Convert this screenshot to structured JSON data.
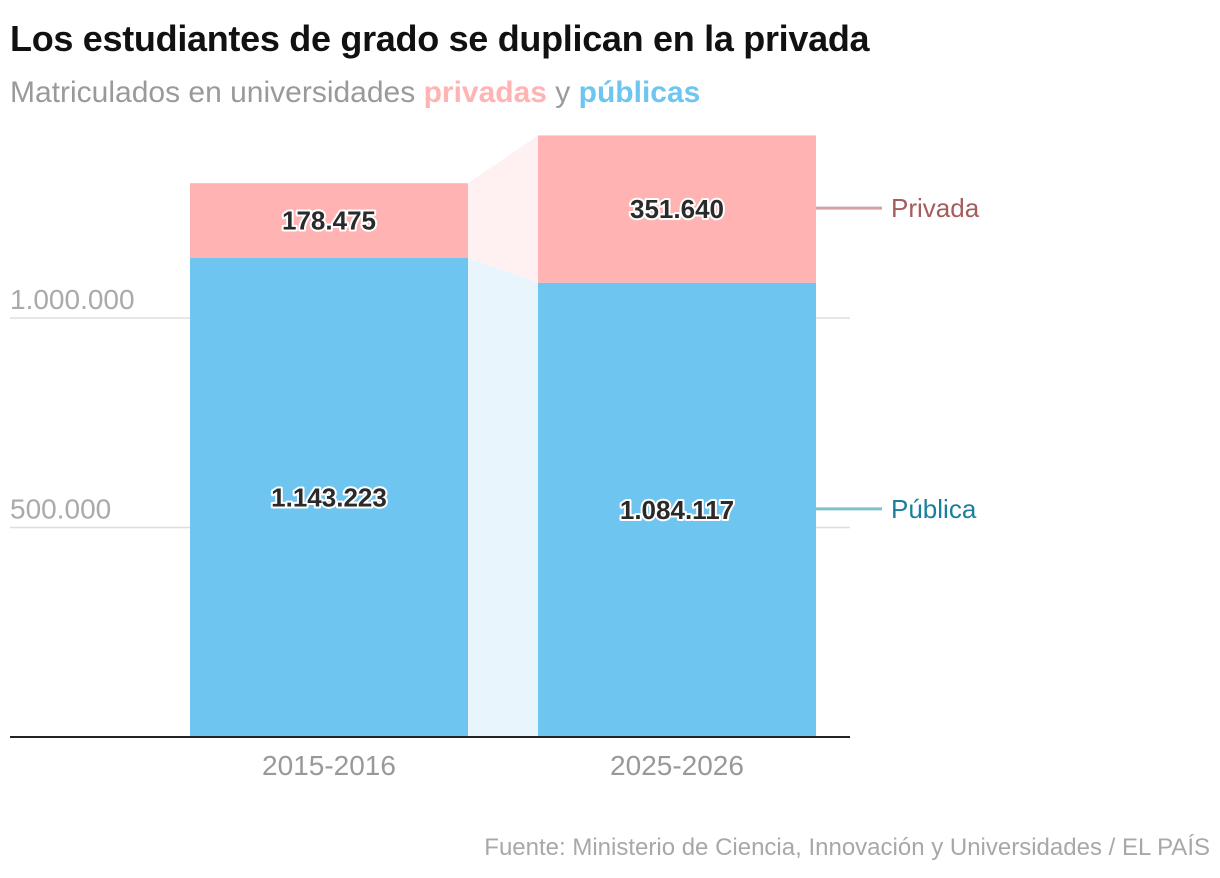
{
  "header": {
    "title": "Los estudiantes de grado se duplican en la privada",
    "subtitle_prefix": "Matriculados en universidades ",
    "subtitle_private": "privadas",
    "subtitle_join": " y ",
    "subtitle_public": "públicas"
  },
  "footer": {
    "source": "Fuente: Ministerio de Ciencia, Innovación y Universidades / EL PAÍS"
  },
  "colors": {
    "privada": "#ffb3b3",
    "publica": "#6ec6f0",
    "privada_band": "#fff1f1",
    "publica_band": "#e8f5fc",
    "privada_legend_text": "#a65c5c",
    "publica_legend_text": "#1a7f9f",
    "privada_legend_line": "#d9a0a4",
    "publica_legend_line": "#7cc1cc"
  },
  "chart_data": {
    "type": "bar",
    "stacked": true,
    "categories": [
      "2015-2016",
      "2025-2026"
    ],
    "series": [
      {
        "name": "Pública",
        "key": "publica",
        "values": [
          1143223,
          1084117
        ],
        "labels": [
          "1.143.223",
          "1.084.117"
        ]
      },
      {
        "name": "Privada",
        "key": "privada",
        "values": [
          178475,
          351640
        ],
        "labels": [
          "178.475",
          "351.640"
        ]
      }
    ],
    "yticks": [
      {
        "value": 500000,
        "label": "500.000"
      },
      {
        "value": 1000000,
        "label": "1.000.000"
      }
    ],
    "ylim": [
      0,
      1440000
    ],
    "xlabel": "",
    "ylabel": "",
    "legend": "right, next to last bar"
  }
}
